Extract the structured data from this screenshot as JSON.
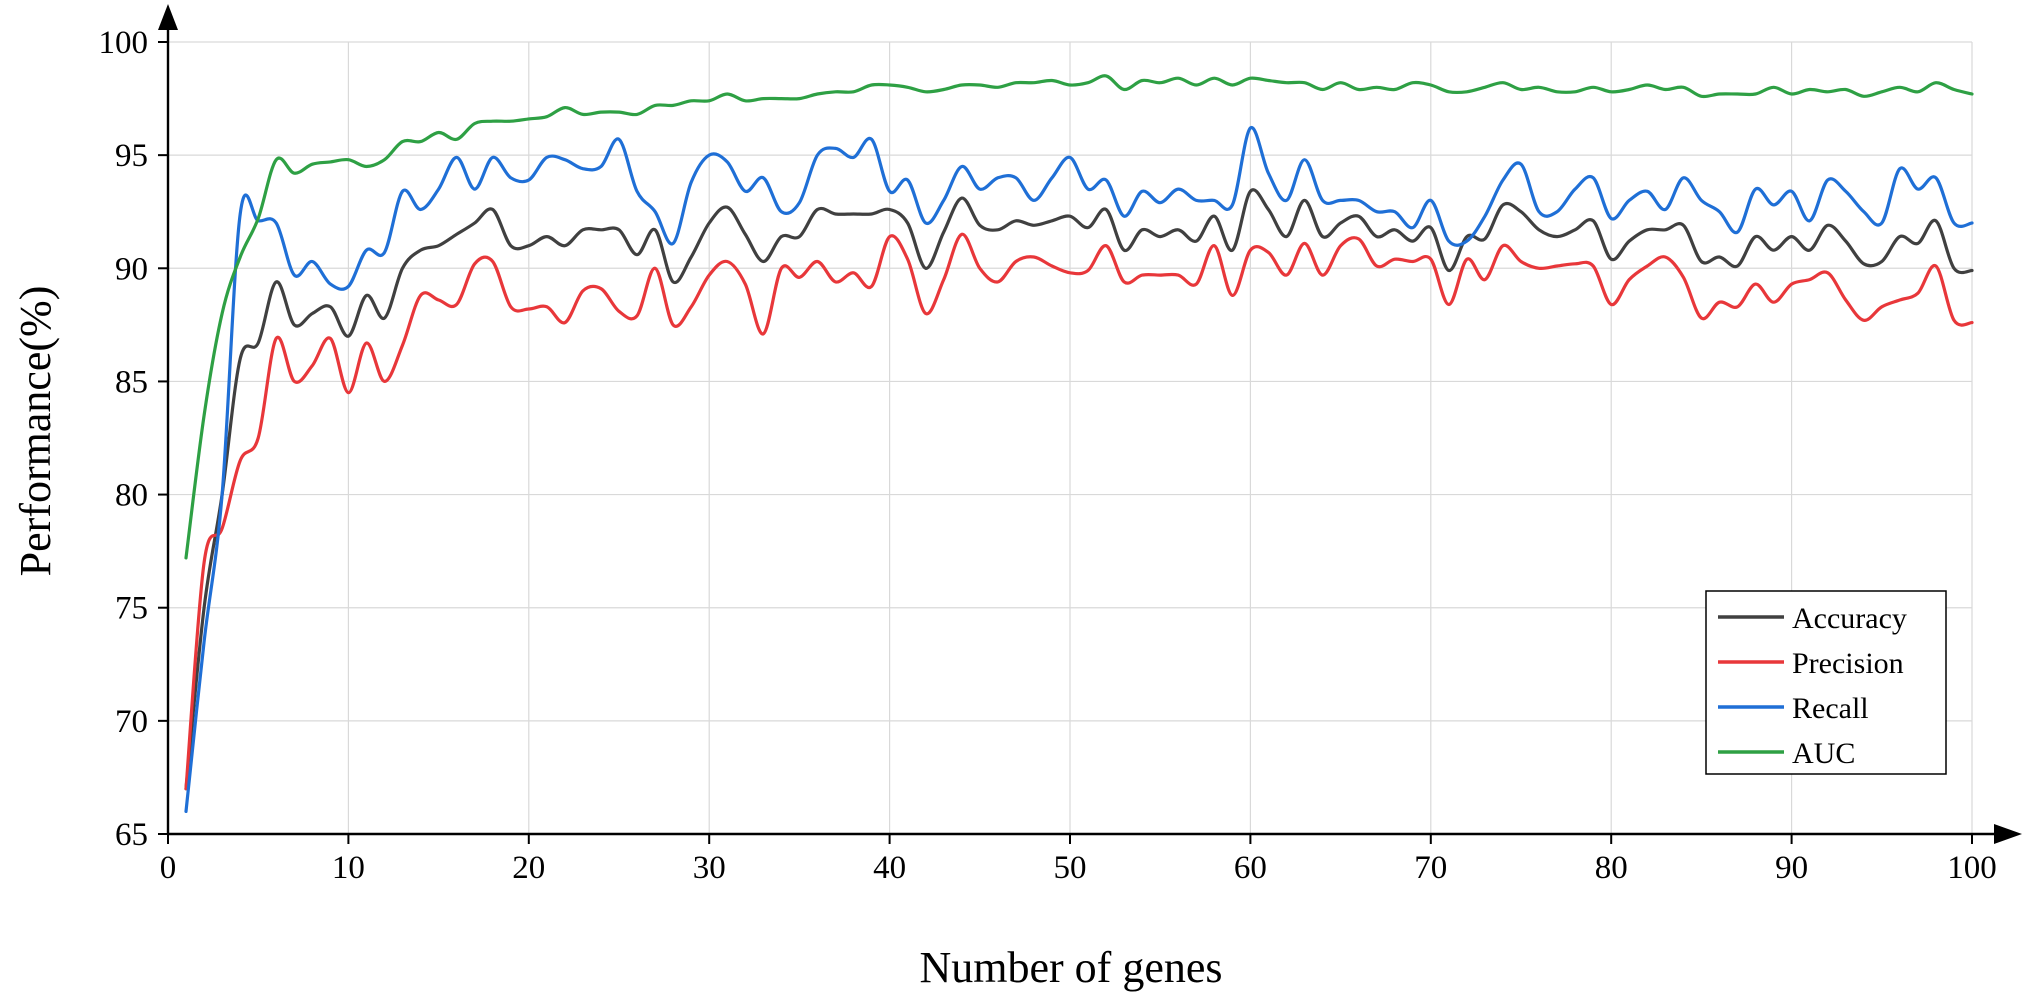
{
  "chart_data": {
    "type": "line",
    "title": "",
    "xlabel": "Number of genes",
    "ylabel": "Performance(%)",
    "xlim": [
      0,
      100
    ],
    "ylim": [
      65,
      100
    ],
    "xticks": [
      0,
      10,
      20,
      30,
      40,
      50,
      60,
      70,
      80,
      90,
      100
    ],
    "yticks": [
      65,
      70,
      75,
      80,
      85,
      90,
      95,
      100
    ],
    "grid": true,
    "legend_position": "bottom-right",
    "x": [
      1,
      2,
      3,
      4,
      5,
      6,
      7,
      8,
      9,
      10,
      11,
      12,
      13,
      14,
      15,
      16,
      17,
      18,
      19,
      20,
      21,
      22,
      23,
      24,
      25,
      26,
      27,
      28,
      29,
      30,
      31,
      32,
      33,
      34,
      35,
      36,
      37,
      38,
      39,
      40,
      41,
      42,
      43,
      44,
      45,
      46,
      47,
      48,
      49,
      50,
      51,
      52,
      53,
      54,
      55,
      56,
      57,
      58,
      59,
      60,
      61,
      62,
      63,
      64,
      65,
      66,
      67,
      68,
      69,
      70,
      71,
      72,
      73,
      74,
      75,
      76,
      77,
      78,
      79,
      80,
      81,
      82,
      83,
      84,
      85,
      86,
      87,
      88,
      89,
      90,
      91,
      92,
      93,
      94,
      95,
      96,
      97,
      98,
      99,
      100
    ],
    "series": [
      {
        "name": "Accuracy",
        "color": "#404040",
        "values": [
          67.0,
          75.0,
          80.0,
          86.0,
          86.7,
          89.4,
          87.5,
          88.0,
          88.3,
          87.0,
          88.8,
          87.8,
          90.0,
          90.8,
          91.0,
          91.5,
          92.0,
          92.6,
          91.0,
          91.0,
          91.4,
          91.0,
          91.7,
          91.7,
          91.7,
          90.6,
          91.7,
          89.4,
          90.5,
          92.0,
          92.7,
          91.5,
          90.3,
          91.4,
          91.4,
          92.6,
          92.4,
          92.4,
          92.4,
          92.6,
          92.0,
          90.0,
          91.6,
          93.1,
          91.9,
          91.7,
          92.1,
          91.9,
          92.1,
          92.3,
          91.8,
          92.6,
          90.8,
          91.7,
          91.4,
          91.7,
          91.2,
          92.3,
          90.8,
          93.4,
          92.6,
          91.4,
          93.0,
          91.4,
          92.0,
          92.3,
          91.4,
          91.7,
          91.2,
          91.8,
          89.9,
          91.4,
          91.3,
          92.8,
          92.5,
          91.7,
          91.4,
          91.7,
          92.1,
          90.4,
          91.2,
          91.7,
          91.7,
          91.9,
          90.3,
          90.5,
          90.1,
          91.4,
          90.8,
          91.4,
          90.8,
          91.9,
          91.2,
          90.2,
          90.3,
          91.4,
          91.1,
          92.1,
          90.0,
          89.9
        ]
      },
      {
        "name": "Precision",
        "color": "#e8373a",
        "values": [
          67.0,
          77.0,
          78.5,
          81.5,
          82.5,
          86.9,
          85.0,
          85.7,
          86.9,
          84.5,
          86.7,
          85.0,
          86.6,
          88.8,
          88.6,
          88.4,
          90.2,
          90.3,
          88.3,
          88.2,
          88.3,
          87.6,
          89.0,
          89.1,
          88.1,
          87.9,
          90.0,
          87.5,
          88.3,
          89.7,
          90.3,
          89.3,
          87.1,
          90.0,
          89.6,
          90.3,
          89.4,
          89.8,
          89.2,
          91.4,
          90.4,
          88.0,
          89.5,
          91.5,
          90.0,
          89.4,
          90.3,
          90.5,
          90.1,
          89.8,
          89.9,
          91.0,
          89.4,
          89.7,
          89.7,
          89.7,
          89.3,
          91.0,
          88.8,
          90.8,
          90.7,
          89.7,
          91.1,
          89.7,
          91.0,
          91.3,
          90.1,
          90.4,
          90.3,
          90.4,
          88.4,
          90.4,
          89.5,
          91.0,
          90.3,
          90.0,
          90.1,
          90.2,
          90.1,
          88.4,
          89.5,
          90.1,
          90.5,
          89.6,
          87.8,
          88.5,
          88.3,
          89.3,
          88.5,
          89.3,
          89.5,
          89.8,
          88.6,
          87.7,
          88.3,
          88.6,
          88.9,
          90.1,
          87.7,
          87.6
        ]
      },
      {
        "name": "Recall",
        "color": "#1f6fd6",
        "values": [
          66.0,
          73.5,
          80.0,
          92.4,
          92.1,
          92.0,
          89.7,
          90.3,
          89.3,
          89.2,
          90.8,
          90.7,
          93.4,
          92.6,
          93.5,
          94.9,
          93.5,
          94.9,
          94.0,
          93.9,
          94.9,
          94.8,
          94.4,
          94.5,
          95.7,
          93.4,
          92.5,
          91.1,
          93.8,
          95.0,
          94.7,
          93.4,
          94.0,
          92.5,
          92.9,
          95.0,
          95.3,
          94.9,
          95.7,
          93.4,
          93.9,
          92.0,
          93.0,
          94.5,
          93.5,
          94.0,
          94.0,
          93.0,
          94.0,
          94.9,
          93.5,
          93.9,
          92.3,
          93.4,
          92.9,
          93.5,
          93.0,
          93.0,
          92.8,
          96.2,
          94.2,
          93.0,
          94.8,
          93.0,
          93.0,
          93.0,
          92.5,
          92.5,
          91.8,
          93.0,
          91.2,
          91.2,
          92.3,
          93.9,
          94.6,
          92.5,
          92.5,
          93.5,
          94.0,
          92.2,
          93.0,
          93.4,
          92.6,
          94.0,
          93.0,
          92.5,
          91.6,
          93.5,
          92.8,
          93.4,
          92.1,
          93.9,
          93.4,
          92.5,
          92.0,
          94.4,
          93.5,
          94.0,
          92.0,
          92.0
        ]
      },
      {
        "name": "AUC",
        "color": "#2ea044",
        "values": [
          77.2,
          83.5,
          88.0,
          90.5,
          92.2,
          94.8,
          94.2,
          94.6,
          94.7,
          94.8,
          94.5,
          94.8,
          95.6,
          95.6,
          96.0,
          95.7,
          96.4,
          96.5,
          96.5,
          96.6,
          96.7,
          97.1,
          96.8,
          96.9,
          96.9,
          96.8,
          97.2,
          97.2,
          97.4,
          97.4,
          97.7,
          97.4,
          97.5,
          97.5,
          97.5,
          97.7,
          97.8,
          97.8,
          98.1,
          98.1,
          98.0,
          97.8,
          97.9,
          98.1,
          98.1,
          98.0,
          98.2,
          98.2,
          98.3,
          98.1,
          98.2,
          98.5,
          97.9,
          98.3,
          98.2,
          98.4,
          98.1,
          98.4,
          98.1,
          98.4,
          98.3,
          98.2,
          98.2,
          97.9,
          98.2,
          97.9,
          98.0,
          97.9,
          98.2,
          98.1,
          97.8,
          97.8,
          98.0,
          98.2,
          97.9,
          98.0,
          97.8,
          97.8,
          98.0,
          97.8,
          97.9,
          98.1,
          97.9,
          98.0,
          97.6,
          97.7,
          97.7,
          97.7,
          98.0,
          97.7,
          97.9,
          97.8,
          97.9,
          97.6,
          97.8,
          98.0,
          97.8,
          98.2,
          97.9,
          97.7
        ]
      }
    ]
  }
}
